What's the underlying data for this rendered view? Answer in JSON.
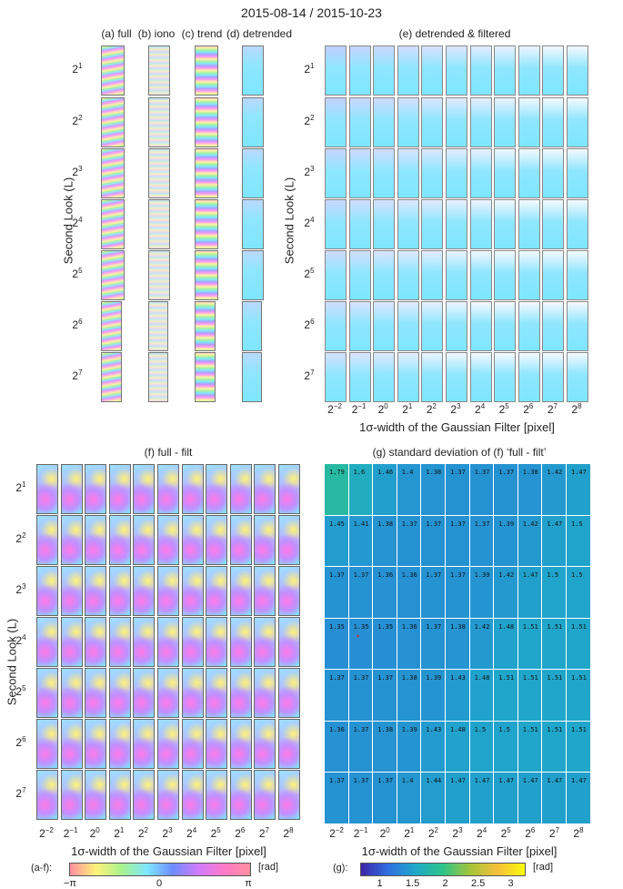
{
  "title": "2015-08-14 / 2015-10-23",
  "panels": {
    "a": "(a) full",
    "b": "(b) iono",
    "c": "(c) trend",
    "d": "(d) detrended",
    "e": "(e) detrended & filtered",
    "f": "(f) full - filt",
    "g": "(g) standard deviation of (f) ‘full - filt’"
  },
  "y_label": "Second Look (L)",
  "x_label": "1σ-width of the Gaussian Filter [pixel]",
  "y_ticks": [
    "1",
    "2",
    "3",
    "4",
    "5",
    "6",
    "7"
  ],
  "x_ticks": [
    "-2",
    "-1",
    "0",
    "1",
    "2",
    "3",
    "4",
    "5",
    "6",
    "7",
    "8"
  ],
  "tick_base": "2",
  "colorbars": {
    "phase": {
      "label": "(a-f):",
      "unit": "[rad]",
      "ticks": [
        "−π",
        "0",
        "π"
      ],
      "colors": [
        "#ff8fa0",
        "#fff27a",
        "#a8f28c",
        "#7ee6ff",
        "#6e8cff",
        "#d27cff",
        "#ff7ac8",
        "#ff8fa0"
      ]
    },
    "std": {
      "label": "(g):",
      "unit": "[rad]",
      "ticks": [
        "1",
        "1.5",
        "2",
        "2.5",
        "3"
      ],
      "tick_values": [
        1,
        1.5,
        2,
        2.5,
        3
      ],
      "range": [
        0.7,
        3.2
      ],
      "colors": [
        "#3e26a8",
        "#2f6fe0",
        "#1fa9c9",
        "#2dc38a",
        "#a5c43a",
        "#f5bf39",
        "#f9fb0e"
      ]
    }
  },
  "chart_data": [
    {
      "type": "heatmap",
      "title": "(g) standard deviation of (f) ‘full - filt’",
      "xlabel": "1σ-width of the Gaussian Filter [pixel]",
      "ylabel": "Second Look (L)",
      "x_categories": [
        "2^-2",
        "2^-1",
        "2^0",
        "2^1",
        "2^2",
        "2^3",
        "2^4",
        "2^5",
        "2^6",
        "2^7",
        "2^8"
      ],
      "y_categories": [
        "2^1",
        "2^2",
        "2^3",
        "2^4",
        "2^5",
        "2^6",
        "2^7"
      ],
      "values": [
        [
          1.79,
          1.6,
          1.46,
          1.4,
          1.38,
          1.37,
          1.37,
          1.37,
          1.38,
          1.42,
          1.47
        ],
        [
          1.45,
          1.41,
          1.38,
          1.37,
          1.37,
          1.37,
          1.37,
          1.39,
          1.42,
          1.47,
          1.5
        ],
        [
          1.37,
          1.37,
          1.36,
          1.36,
          1.37,
          1.37,
          1.39,
          1.42,
          1.47,
          1.5,
          1.5
        ],
        [
          1.35,
          1.35,
          1.35,
          1.36,
          1.37,
          1.38,
          1.42,
          1.48,
          1.51,
          1.51,
          1.51
        ],
        [
          1.37,
          1.37,
          1.37,
          1.38,
          1.39,
          1.43,
          1.48,
          1.51,
          1.51,
          1.51,
          1.51
        ],
        [
          1.36,
          1.37,
          1.38,
          1.39,
          1.43,
          1.48,
          1.5,
          1.5,
          1.51,
          1.51,
          1.51
        ],
        [
          1.37,
          1.37,
          1.37,
          1.4,
          1.44,
          1.47,
          1.47,
          1.47,
          1.47,
          1.47,
          1.47
        ]
      ],
      "colorbar_range": [
        0.7,
        3.2
      ],
      "colorbar_unit": "[rad]",
      "marker": {
        "row": 3,
        "col": 1,
        "symbol": "*",
        "color": "#e02020"
      }
    }
  ]
}
